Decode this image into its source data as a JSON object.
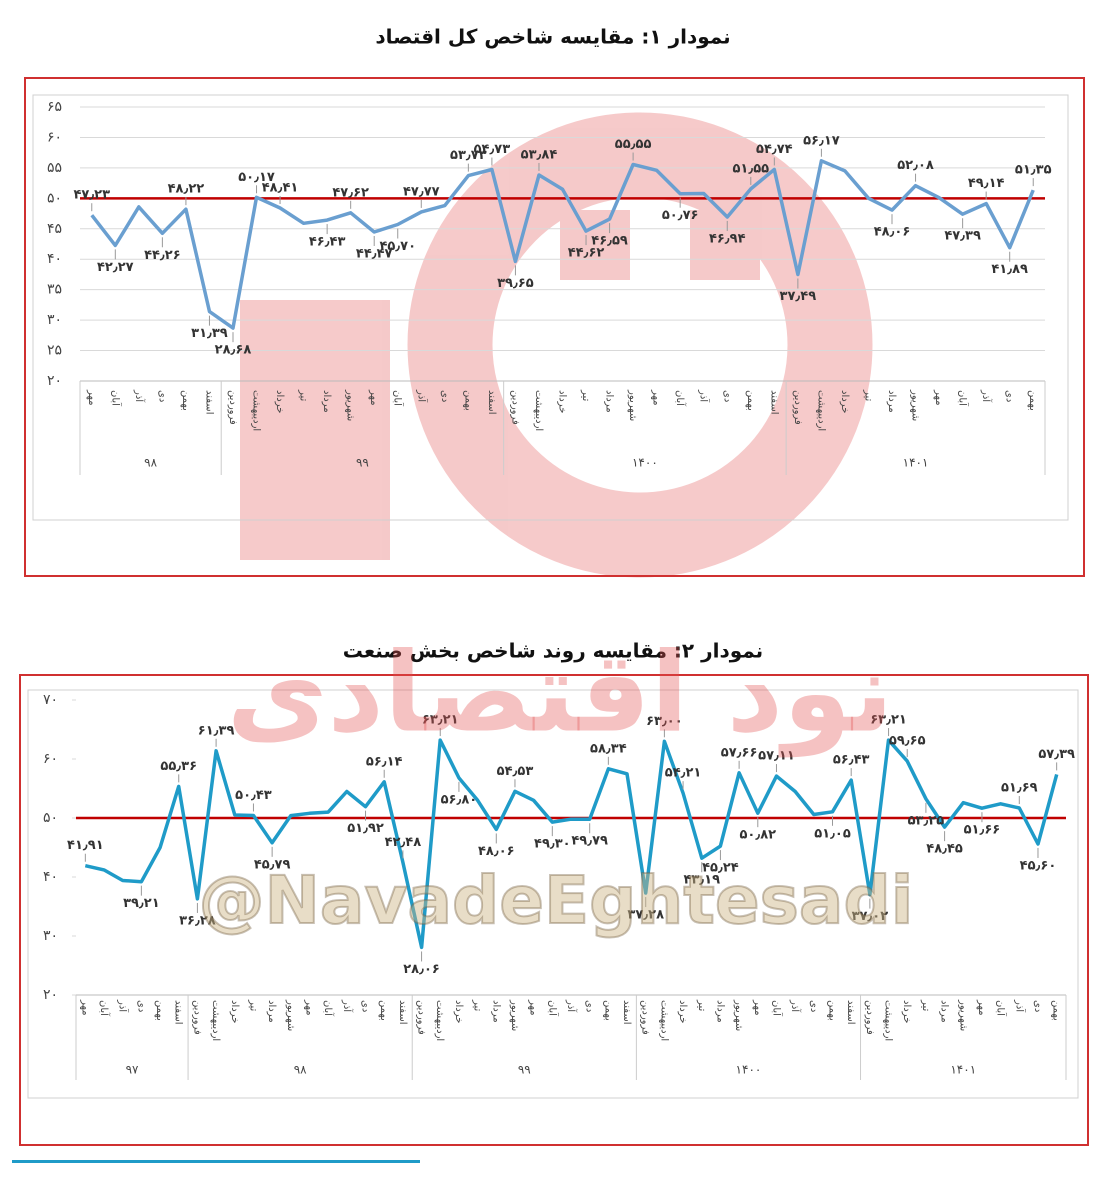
{
  "chart_data": [
    {
      "type": "line",
      "title": "نمودار ۱: مقایسه شاخص کل اقتصاد",
      "categories": [
        "مهر",
        "آبان",
        "آذر",
        "دی",
        "بهمن",
        "اسفند",
        "فروردین",
        "اردیبهشت",
        "خرداد",
        "تیر",
        "مرداد",
        "شهریور",
        "مهر",
        "آبان",
        "آذر",
        "دی",
        "بهمن",
        "اسفند",
        "فروردین",
        "اردیبهشت",
        "خرداد",
        "تیر",
        "مرداد",
        "شهریور",
        "مهر",
        "آبان",
        "آذر",
        "دی",
        "بهمن",
        "اسفند",
        "فروردین",
        "اردیبهشت",
        "خرداد",
        "تیر",
        "مرداد",
        "شهریور",
        "مهر",
        "آبان",
        "آذر",
        "دی",
        "بهمن"
      ],
      "groups": [
        "۹۸",
        "۹۹",
        "۱۴۰۰",
        "۱۴۰۱"
      ],
      "values": [
        47.23,
        42.27,
        48.6,
        44.26,
        48.22,
        31.39,
        28.68,
        50.17,
        48.41,
        45.9,
        46.43,
        47.62,
        44.47,
        45.7,
        47.77,
        48.8,
        53.73,
        54.73,
        39.65,
        53.84,
        51.5,
        44.62,
        46.59,
        55.55,
        54.6,
        50.76,
        50.8,
        46.94,
        51.55,
        54.74,
        37.49,
        56.17,
        54.5,
        50.0,
        48.06,
        52.08,
        50.1,
        47.39,
        49.14,
        41.89,
        51.35
      ],
      "value_labels": [
        "۴۷٫۲۳",
        "۴۲٫۲۷",
        null,
        "۴۴٫۲۶",
        "۴۸٫۲۲",
        "۳۱٫۳۹",
        "۲۸٫۶۸",
        "۵۰٫۱۷",
        "۴۸٫۴۱",
        null,
        "۴۶٫۴۳",
        "۴۷٫۶۲",
        "۴۴٫۴۷",
        "۴۵٫۷۰",
        "۴۷٫۷۷",
        null,
        "۵۳٫۷۳",
        "۵۴٫۷۳",
        "۳۹٫۶۵",
        "۵۳٫۸۴",
        null,
        "۴۴٫۶۲",
        "۴۶٫۵۹",
        "۵۵٫۵۵",
        null,
        "۵۰٫۷۶",
        null,
        "۴۶٫۹۴",
        "۵۱٫۵۵",
        "۵۴٫۷۴",
        "۳۷٫۴۹",
        "۵۶٫۱۷",
        null,
        null,
        "۴۸٫۰۶",
        "۵۲٫۰۸",
        null,
        "۴۷٫۳۹",
        "۴۹٫۱۴",
        "۴۱٫۸۹",
        "۵۱٫۳۵"
      ],
      "color": "#6a9fd0",
      "ylim": [
        20,
        65
      ],
      "yticks": [
        {
          "value": 20,
          "label": "۲۰"
        },
        {
          "value": 25,
          "label": "۲۵"
        },
        {
          "value": 30,
          "label": "۳۰"
        },
        {
          "value": 35,
          "label": "۳۵"
        },
        {
          "value": 40,
          "label": "۴۰"
        },
        {
          "value": 45,
          "label": "۴۵"
        },
        {
          "value": 50,
          "label": "۵۰"
        },
        {
          "value": 55,
          "label": "۵۵"
        },
        {
          "value": 60,
          "label": "۶۰"
        },
        {
          "value": 65,
          "label": "۶۵"
        }
      ],
      "grid": true,
      "reference_line": {
        "value": 50,
        "color": "#c00000"
      }
    },
    {
      "type": "line",
      "title": "نمودار ۲: مقایسه روند شاخص بخش صنعت",
      "categories": [
        "مهر",
        "آبان",
        "آذر",
        "دی",
        "بهمن",
        "اسفند",
        "فروردین",
        "اردیبهشت",
        "خرداد",
        "تیر",
        "مرداد",
        "شهریور",
        "مهر",
        "آبان",
        "آذر",
        "دی",
        "بهمن",
        "اسفند",
        "فروردین",
        "اردیبهشت",
        "خرداد",
        "تیر",
        "مرداد",
        "شهریور",
        "مهر",
        "آبان",
        "آذر",
        "دی",
        "بهمن",
        "اسفند",
        "فروردین",
        "اردیبهشت",
        "خرداد",
        "تیر",
        "مرداد",
        "شهریور",
        "مهر",
        "آبان",
        "آذر",
        "دی",
        "بهمن",
        "اسفند",
        "فروردین",
        "اردیبهشت",
        "خرداد",
        "تیر",
        "مرداد",
        "شهریور",
        "مهر",
        "آبان",
        "آذر",
        "دی",
        "بهمن"
      ],
      "groups": [
        "۹۷",
        "۹۸",
        "۹۹",
        "۱۴۰۰",
        "۱۴۰۱"
      ],
      "values": [
        41.91,
        41.2,
        39.4,
        39.21,
        45.0,
        55.36,
        36.28,
        61.39,
        50.5,
        50.43,
        45.79,
        50.4,
        50.8,
        51.0,
        54.5,
        51.92,
        56.14,
        42.48,
        28.06,
        63.21,
        56.8,
        53.0,
        48.06,
        54.53,
        53.0,
        49.3,
        49.8,
        49.79,
        58.34,
        57.5,
        37.28,
        63.0,
        54.21,
        43.19,
        45.24,
        57.66,
        50.82,
        57.11,
        54.5,
        50.6,
        51.05,
        56.43,
        37.02,
        63.21,
        59.65,
        53.25,
        48.45,
        52.6,
        51.66,
        52.4,
        51.69,
        45.6,
        57.39
      ],
      "value_labels": [
        "۴۱٫۹۱",
        null,
        null,
        "۳۹٫۲۱",
        null,
        "۵۵٫۳۶",
        "۳۶٫۲۸",
        "۶۱٫۳۹",
        null,
        "۵۰٫۴۳",
        "۴۵٫۷۹",
        null,
        null,
        null,
        null,
        "۵۱٫۹۲",
        "۵۶٫۱۴",
        "۴۲٫۴۸",
        "۲۸٫۰۶",
        "۶۳٫۲۱",
        "۵۶٫۸۰",
        null,
        "۴۸٫۰۶",
        "۵۴٫۵۳",
        null,
        "۴۹٫۳۰",
        null,
        "۴۹٫۷۹",
        "۵۸٫۳۴",
        null,
        "۳۷٫۲۸",
        "۶۳٫۰۰",
        "۵۴٫۲۱",
        "۴۳٫۱۹",
        "۴۵٫۲۴",
        "۵۷٫۶۶",
        "۵۰٫۸۲",
        "۵۷٫۱۱",
        null,
        null,
        "۵۱٫۰۵",
        "۵۶٫۴۳",
        "۳۷٫۰۲",
        "۶۳٫۲۱",
        "۵۹٫۶۵",
        "۵۳٫۲۵",
        "۴۸٫۴۵",
        null,
        "۵۱٫۶۶",
        null,
        "۵۱٫۶۹",
        "۴۵٫۶۰",
        "۵۷٫۳۹"
      ],
      "color": "#1f9bc8",
      "ylim": [
        20,
        70
      ],
      "yticks": [
        {
          "value": 20,
          "label": "۲۰"
        },
        {
          "value": 30,
          "label": "۳۰"
        },
        {
          "value": 40,
          "label": "۴۰"
        },
        {
          "value": 50,
          "label": "۵۰"
        },
        {
          "value": 60,
          "label": "۶۰"
        },
        {
          "value": 70,
          "label": "۷۰"
        }
      ],
      "grid": false,
      "reference_line": {
        "value": 50,
        "color": "#c00000"
      }
    }
  ],
  "watermark": {
    "name": "نود اقتصادی",
    "handle": "@NavadeEghtesadi"
  }
}
